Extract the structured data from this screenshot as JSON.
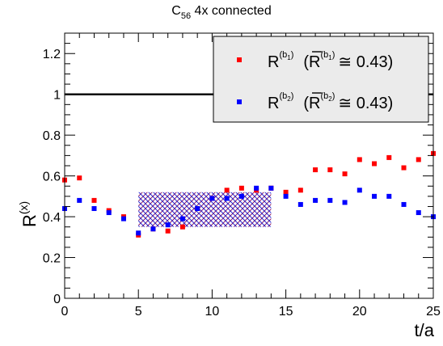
{
  "chart_data": {
    "type": "scatter",
    "title": {
      "base": "C",
      "sub": "56",
      "rest": " 4x connected"
    },
    "xlabel": "t/a",
    "ylabel": {
      "base": "R",
      "sup": "(x)"
    },
    "xlim": [
      0,
      25
    ],
    "ylim": [
      0,
      1.3
    ],
    "x_ticks": [
      0,
      5,
      10,
      15,
      20,
      25
    ],
    "y_ticks": [
      0,
      0.2,
      0.4,
      0.6,
      0.8,
      1,
      1.2
    ],
    "x_tick_labels": [
      "0",
      "5",
      "10",
      "15",
      "20",
      "25"
    ],
    "y_tick_labels": [
      "0",
      "0.2",
      "0.4",
      "0.6",
      "0.8",
      "1",
      "1.2"
    ],
    "reference_line_y": 1,
    "band": {
      "x": [
        5,
        14
      ],
      "y": [
        0.35,
        0.52
      ],
      "color": "#8b1a6b"
    },
    "legend_position": "top-right",
    "series": [
      {
        "color": "#ff0000",
        "legend": {
          "r_sup": "(b",
          "r_sub": "1",
          "r_close": ")",
          "rbar_sup": "(b",
          "rbar_sub": "1",
          "rbar_close": ")",
          "value": "≅ 0.43)"
        },
        "x": [
          0,
          1,
          2,
          3,
          4,
          5,
          6,
          7,
          8,
          9,
          10,
          11,
          12,
          13,
          14,
          15,
          16,
          17,
          18,
          19,
          20,
          21,
          22,
          23,
          24,
          25
        ],
        "y": [
          0.58,
          0.59,
          0.48,
          0.43,
          0.4,
          0.31,
          0.34,
          0.33,
          0.35,
          0.44,
          0.49,
          0.53,
          0.54,
          0.53,
          0.54,
          0.52,
          0.53,
          0.63,
          0.63,
          0.61,
          0.68,
          0.66,
          0.69,
          0.64,
          0.68,
          0.71
        ]
      },
      {
        "color": "#0000ff",
        "legend": {
          "r_sup": "(b",
          "r_sub": "2",
          "r_close": ")",
          "rbar_sup": "(b",
          "rbar_sub": "2",
          "rbar_close": ")",
          "value": "≅ 0.43)"
        },
        "x": [
          0,
          1,
          2,
          3,
          4,
          5,
          6,
          7,
          8,
          9,
          10,
          11,
          12,
          13,
          14,
          15,
          16,
          17,
          18,
          19,
          20,
          21,
          22,
          23,
          24,
          25
        ],
        "y": [
          0.44,
          0.48,
          0.44,
          0.42,
          0.39,
          0.32,
          0.34,
          0.36,
          0.39,
          0.44,
          0.49,
          0.49,
          0.5,
          0.54,
          0.54,
          0.5,
          0.46,
          0.48,
          0.48,
          0.47,
          0.53,
          0.5,
          0.5,
          0.46,
          0.42,
          0.4
        ]
      }
    ],
    "grid": false
  }
}
